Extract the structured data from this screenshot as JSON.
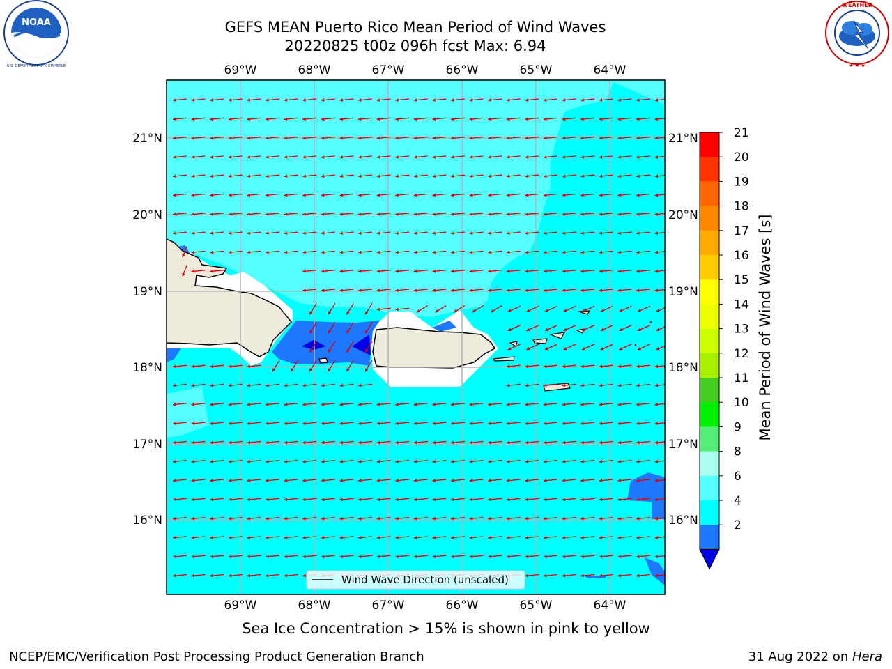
{
  "title": {
    "line1": "GEFS MEAN Puerto Rico Mean Period of Wind Waves",
    "line2": "20220825 t00z 096h fcst   Max: 6.94"
  },
  "logos": {
    "left": {
      "name": "NOAA",
      "ring_text": "NATIONAL OCEANIC AND ATMOSPHERIC ADMINISTRATION · U.S. DEPARTMENT OF COMMERCE"
    },
    "right": {
      "name": "NATIONAL WEATHER SERVICE"
    }
  },
  "map": {
    "lon_labels": [
      "69°W",
      "68°W",
      "67°W",
      "66°W",
      "65°W",
      "64°W"
    ],
    "lat_labels": [
      "21°N",
      "20°N",
      "19°N",
      "18°N",
      "17°N",
      "16°N"
    ],
    "legend_label": "Wind Wave Direction (unscaled)",
    "colors": {
      "ocean_4_6": "#00ffff",
      "ocean_6_8": "#55ffff",
      "band_2_4": "#1e78ff",
      "below_2": "#0000e6",
      "land": "#efebdc",
      "arrows": "#e00000",
      "grid": "#b4b4b4"
    }
  },
  "colorbar": {
    "label": "Mean Period of Wind Waves [s]",
    "ticks": [
      "21",
      "20",
      "19",
      "18",
      "17",
      "16",
      "15",
      "14",
      "13",
      "12",
      "11",
      "10",
      "9",
      "8",
      "6",
      "4",
      "2"
    ],
    "colors_top_to_bottom": [
      "#ff0000",
      "#ff3300",
      "#ff6600",
      "#ff8800",
      "#ffaa00",
      "#ffcc00",
      "#ffff00",
      "#eeff00",
      "#ccff00",
      "#aaee00",
      "#44cc22",
      "#00ee00",
      "#55ee77",
      "#aaffee",
      "#55ffff",
      "#00ffff",
      "#1e78ff"
    ],
    "extend_color": "#0000e6"
  },
  "caption": "Sea Ice Concentration > 15% is shown in pink to yellow",
  "footer": {
    "left": "NCEP/EMC/Verification Post Processing Product Generation Branch",
    "right_date": "31 Aug 2022 on ",
    "right_host": "Hera"
  }
}
